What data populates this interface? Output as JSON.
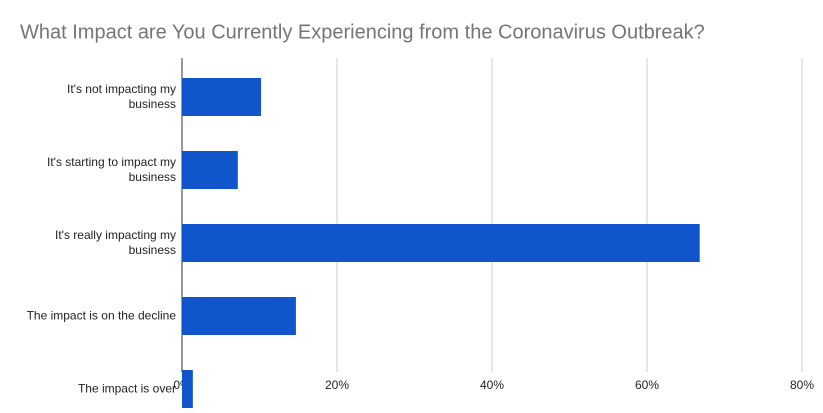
{
  "chart_data": {
    "type": "bar",
    "orientation": "horizontal",
    "title": "What Impact are You Currently Experiencing from the Coronavirus Outbreak?",
    "categories": [
      "It's not impacting my business",
      "It's starting to impact my business",
      "It's really impacting my business",
      "The impact is on the decline",
      "The impact is over"
    ],
    "values": [
      10.2,
      7.2,
      66.8,
      14.7,
      1.4
    ],
    "color": "#1155cc",
    "xlim": [
      0,
      80
    ],
    "xticks": [
      {
        "value": 0,
        "label": "0%"
      },
      {
        "value": 20,
        "label": "20%"
      },
      {
        "value": 40,
        "label": "40%"
      },
      {
        "value": 60,
        "label": "60%"
      },
      {
        "value": 80,
        "label": "80%"
      }
    ],
    "grid": true
  }
}
